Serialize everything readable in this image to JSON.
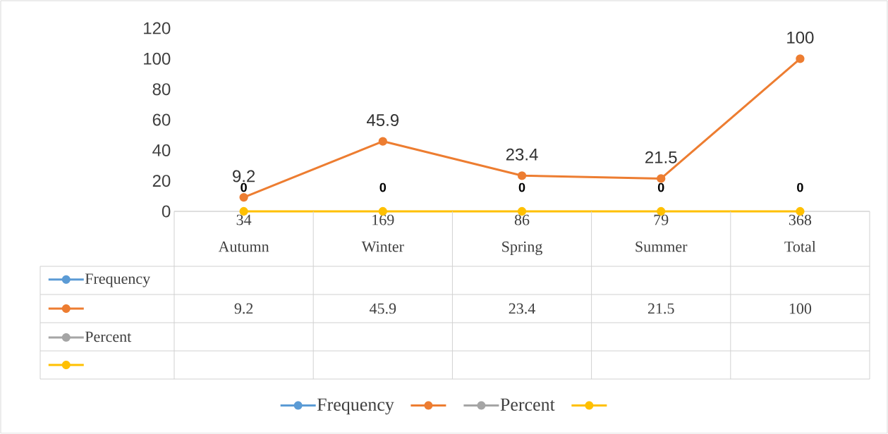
{
  "chart_data": {
    "type": "line",
    "categories": [
      "34 Autumn",
      "169 Winter",
      "86 Spring",
      "79 Summer",
      "368 Total"
    ],
    "series": [
      {
        "name": "Frequency",
        "color": "#5b9bd5",
        "values": [
          null,
          null,
          null,
          null,
          null
        ]
      },
      {
        "color": "#ed7d31",
        "values": [
          9.2,
          45.9,
          23.4,
          21.5,
          100
        ],
        "value_labels": [
          "9.2",
          "45.9",
          "23.4",
          "21.5",
          "100"
        ]
      },
      {
        "name": "Percent",
        "color": "#a5a5a5",
        "values": [
          null,
          null,
          null,
          null,
          null
        ]
      },
      {
        "color": "#ffc000",
        "values": [
          0,
          0,
          0,
          0,
          0
        ],
        "value_labels": [
          "0",
          "0",
          "0",
          "0",
          "0"
        ],
        "data_labels": false
      }
    ],
    "ylim": [
      0,
      120
    ],
    "yticks": [
      0,
      20,
      40,
      60,
      80,
      100,
      120
    ],
    "data_labels": true,
    "legend": "bottom",
    "marker": "circle",
    "line_style": "solid"
  }
}
